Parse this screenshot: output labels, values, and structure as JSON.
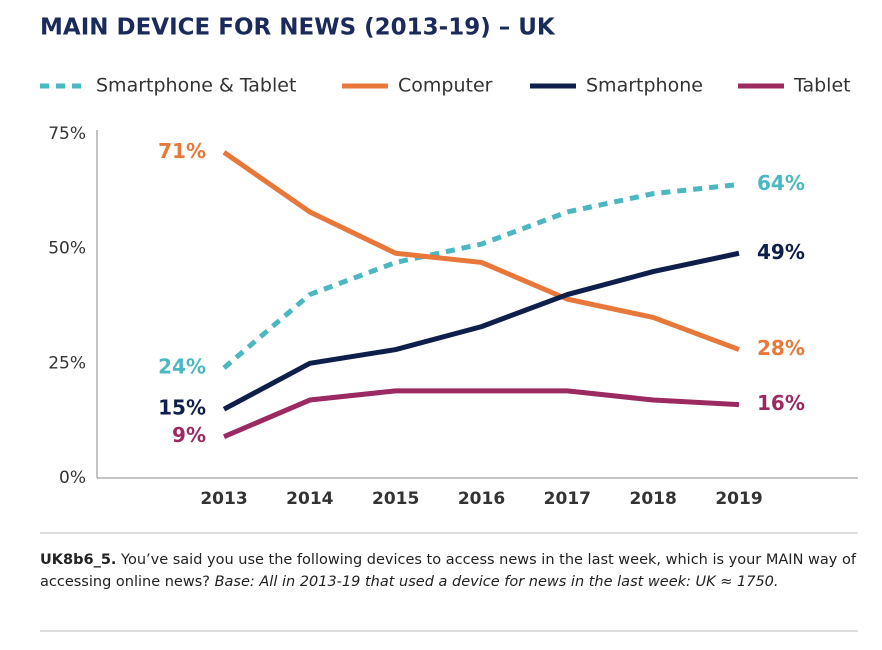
{
  "chart_data": {
    "type": "line",
    "title": "MAIN DEVICE FOR NEWS (2013-19) – UK",
    "categories": [
      "2013",
      "2014",
      "2015",
      "2016",
      "2017",
      "2018",
      "2019"
    ],
    "series": [
      {
        "name": "Smartphone & Tablet",
        "color": "#4bb7c0",
        "dashed": true,
        "values": [
          24,
          40,
          47,
          51,
          58,
          62,
          64
        ],
        "value_labels": [
          "24%",
          null,
          null,
          null,
          null,
          null,
          "64%"
        ]
      },
      {
        "name": "Computer",
        "color": "#e8773a",
        "dashed": false,
        "values": [
          71,
          58,
          49,
          47,
          39,
          35,
          28
        ],
        "value_labels": [
          "71%",
          null,
          null,
          null,
          null,
          null,
          "28%"
        ]
      },
      {
        "name": "Smartphone",
        "color": "#0f1f4b",
        "dashed": false,
        "values": [
          15,
          25,
          28,
          33,
          40,
          45,
          49
        ],
        "value_labels": [
          "15%",
          null,
          null,
          null,
          null,
          null,
          "49%"
        ]
      },
      {
        "name": "Tablet",
        "color": "#9c2a62",
        "dashed": false,
        "values": [
          9,
          17,
          19,
          19,
          19,
          17,
          16
        ],
        "value_labels": [
          "9%",
          null,
          null,
          null,
          null,
          null,
          "16%"
        ]
      }
    ],
    "ylim": [
      0,
      75
    ],
    "yticks": [
      {
        "value": 0,
        "label": "0%"
      },
      {
        "value": 25,
        "label": "25%"
      },
      {
        "value": 50,
        "label": "50%"
      },
      {
        "value": 75,
        "label": "75%"
      }
    ],
    "grid": false,
    "legend": "top"
  },
  "footnote": {
    "code": "UK8b6_5.",
    "text": "You’ve said you use the following devices to access news in the last week, which is your MAIN way of accessing online news?",
    "base": "Base: All in 2013-19 that used a device for news in the last week: UK ≈ 1750."
  }
}
